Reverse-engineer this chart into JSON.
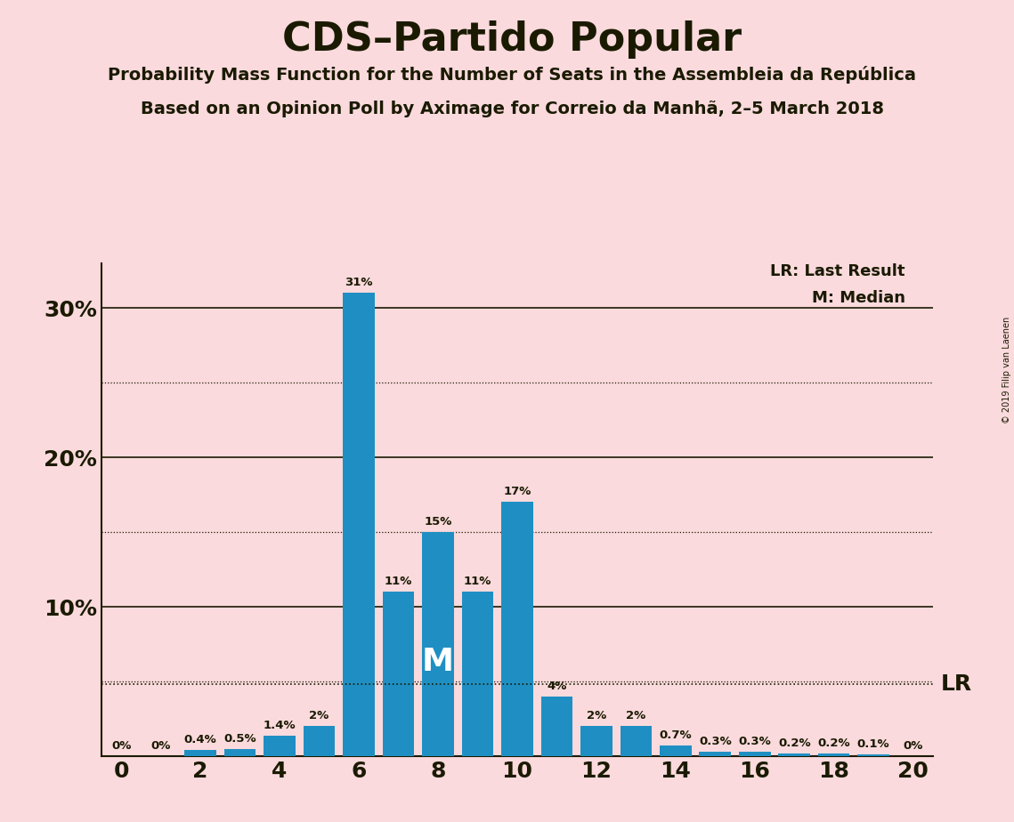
{
  "title": "CDS–Partido Popular",
  "subtitle1": "Probability Mass Function for the Number of Seats in the Assembleia da República",
  "subtitle2": "Based on an Opinion Poll by Aximage for Correio da Manhã, 2–5 March 2018",
  "copyright": "© 2019 Filip van Laenen",
  "legend_lr": "LR: Last Result",
  "legend_m": "M: Median",
  "seats": [
    0,
    1,
    2,
    3,
    4,
    5,
    6,
    7,
    8,
    9,
    10,
    11,
    12,
    13,
    14,
    15,
    16,
    17,
    18,
    19,
    20
  ],
  "probabilities": [
    0.0,
    0.0,
    0.4,
    0.5,
    1.4,
    2.0,
    31.0,
    11.0,
    15.0,
    11.0,
    17.0,
    4.0,
    2.0,
    2.0,
    0.7,
    0.3,
    0.3,
    0.2,
    0.2,
    0.1,
    0.0
  ],
  "bar_color": "#1f8fc3",
  "background_color": "#fadadd",
  "text_color": "#1a1a00",
  "median_seat": 8,
  "lr_value": 4.85,
  "ytick_labeled": [
    10,
    20,
    30
  ],
  "ytick_dotted": [
    5,
    15,
    25
  ],
  "ytick_solid": [
    10,
    20,
    30
  ],
  "ylim": [
    0,
    33
  ],
  "xlim": [
    -0.5,
    20.5
  ],
  "bar_labels": [
    "0%",
    "0%",
    "0.4%",
    "0.5%",
    "1.4%",
    "2%",
    "31%",
    "11%",
    "15%",
    "11%",
    "17%",
    "4%",
    "2%",
    "2%",
    "0.7%",
    "0.3%",
    "0.3%",
    "0.2%",
    "0.2%",
    "0.1%",
    "0%"
  ]
}
